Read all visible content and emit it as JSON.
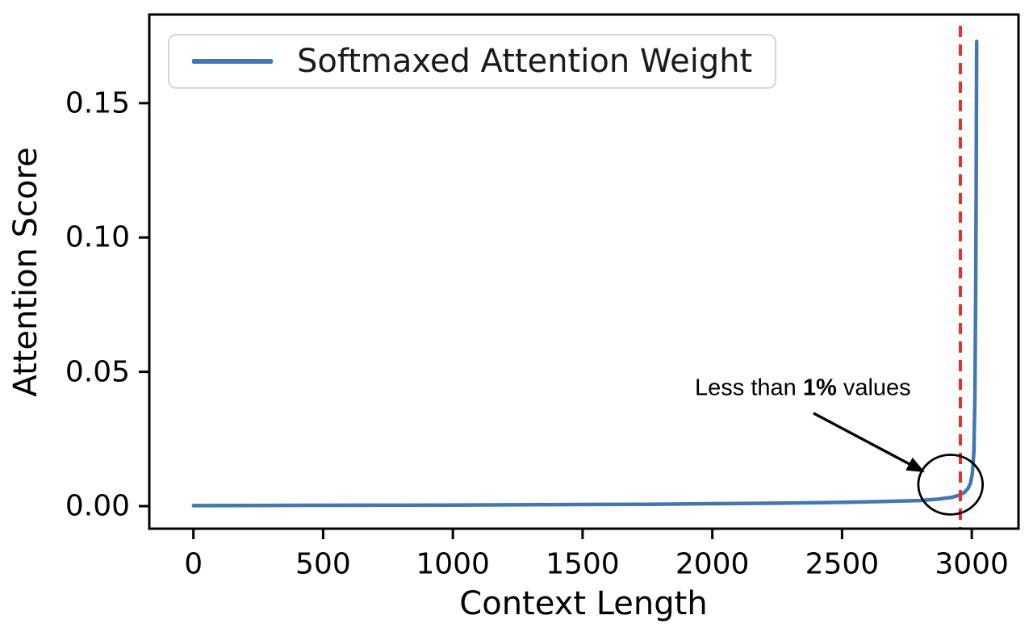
{
  "chart_data": {
    "type": "line",
    "title": "",
    "xlabel": "Context Length",
    "ylabel": "Attention Score",
    "xlim": [
      -170,
      3180
    ],
    "ylim": [
      -0.0084,
      0.183
    ],
    "grid": false,
    "x_ticks": [
      0,
      500,
      1000,
      1500,
      2000,
      2500,
      3000
    ],
    "y_ticks": [
      0,
      0.05,
      0.1,
      0.15
    ],
    "y_tick_labels": [
      "0.00",
      "0.05",
      "0.10",
      "0.15"
    ],
    "legend": {
      "position": "upper-left",
      "entries": [
        {
          "label": "Softmaxed Attention Weight",
          "color": "#4377b2"
        }
      ]
    },
    "series": [
      {
        "name": "Softmaxed Attention Weight",
        "color": "#4377b2",
        "points": [
          [
            0,
            0.0002
          ],
          [
            250,
            0.00025
          ],
          [
            500,
            0.0003
          ],
          [
            750,
            0.00035
          ],
          [
            1000,
            0.0004
          ],
          [
            1250,
            0.0005
          ],
          [
            1500,
            0.0006
          ],
          [
            1750,
            0.0007
          ],
          [
            2000,
            0.0009
          ],
          [
            2250,
            0.0011
          ],
          [
            2500,
            0.0014
          ],
          [
            2650,
            0.0017
          ],
          [
            2800,
            0.0021
          ],
          [
            2870,
            0.0026
          ],
          [
            2920,
            0.0032
          ],
          [
            2950,
            0.004
          ],
          [
            2970,
            0.005
          ],
          [
            2985,
            0.0065
          ],
          [
            2995,
            0.0085
          ],
          [
            3002,
            0.012
          ],
          [
            3008,
            0.02
          ],
          [
            3012,
            0.04
          ],
          [
            3015,
            0.08
          ],
          [
            3017,
            0.12
          ],
          [
            3018,
            0.15
          ],
          [
            3019,
            0.173
          ]
        ]
      }
    ],
    "vline": {
      "x": 2956,
      "color": "#e53228",
      "style": "dashed"
    },
    "annotation": {
      "text_prefix": "Less than ",
      "text_bold": "1%",
      "text_suffix": " values",
      "text_at": [
        2349,
        0.0439
      ],
      "arrow_from": [
        2390,
        0.0346
      ],
      "arrow_to": [
        2819,
        0.0126
      ],
      "circle": {
        "cx": 2918,
        "cy": 0.008,
        "rx": 124,
        "ry": 0.0111
      }
    }
  }
}
